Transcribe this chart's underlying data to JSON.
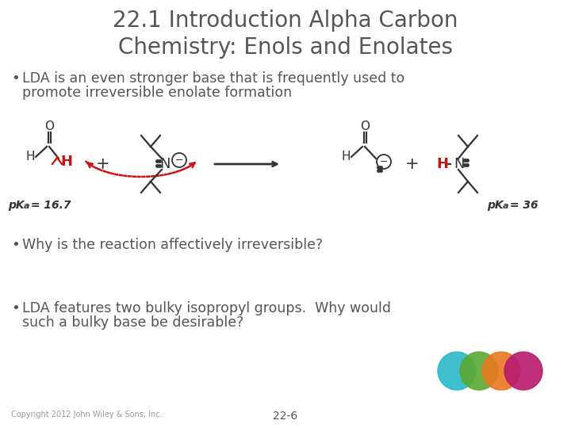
{
  "title_line1": "22.1 Introduction Alpha Carbon",
  "title_line2": "Chemistry: Enols and Enolates",
  "bullet1_line1": "LDA is an even stronger base that is frequently used to",
  "bullet1_line2": "promote irreversible enolate formation",
  "bullet2": "Why is the reaction affectively irreversible?",
  "bullet3_line1": "LDA features two bulky isopropyl groups.  Why would",
  "bullet3_line2": "such a bulky base be desirable?",
  "copyright": "Copyright 2012 John Wiley & Sons, Inc.",
  "page_num": "22-6",
  "bg_color": "#ffffff",
  "title_color": "#555555",
  "text_color": "#555555",
  "red_color": "#cc1111",
  "circle_colors": [
    "#29b8c8",
    "#5aa832",
    "#e87820",
    "#b8186c"
  ],
  "title_fontsize": 20,
  "body_fontsize": 12.5,
  "chem_color": "#333333"
}
